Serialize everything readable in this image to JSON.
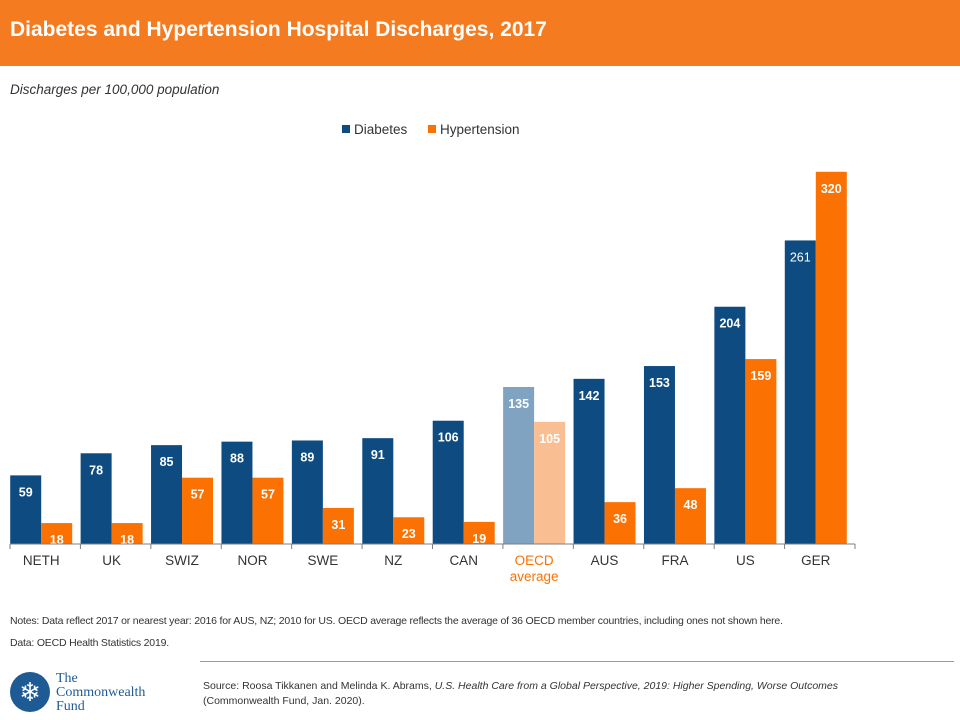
{
  "header": {
    "title": "Diabetes and Hypertension Hospital Discharges, 2017",
    "subtitle": "Discharges per 100,000 population"
  },
  "colors": {
    "header_bg": "#f47b20",
    "diabetes": "#0d4b80",
    "hypertension": "#fb7202",
    "oecd_diabetes": "#7fa3c1",
    "oecd_hypertension": "#f9be91",
    "oecd_label": "#fb7202"
  },
  "chart_data": {
    "type": "bar",
    "categories": [
      "NETH",
      "UK",
      "SWIZ",
      "NOR",
      "SWE",
      "NZ",
      "CAN",
      "OECD average",
      "AUS",
      "FRA",
      "US",
      "GER"
    ],
    "series": [
      {
        "name": "Diabetes",
        "values": [
          59,
          78,
          85,
          88,
          89,
          91,
          106,
          135,
          142,
          153,
          204,
          261
        ]
      },
      {
        "name": "Hypertension",
        "values": [
          18,
          18,
          57,
          57,
          31,
          23,
          19,
          105,
          36,
          48,
          159,
          320
        ]
      }
    ],
    "highlight_category": "OECD average",
    "legend": {
      "position": "top-center"
    },
    "ylim": [
      0,
      325
    ],
    "grid": false,
    "y_axis_visible": false,
    "data_labels": true
  },
  "footer": {
    "notes": "Notes: Data reflect 2017 or nearest year: 2016 for AUS, NZ; 2010 for US. OECD average reflects the average of 36 OECD member countries, including ones not shown here.",
    "data_source": "Data: OECD Health Statistics 2019.",
    "source_prefix": "Source: Roosa Tikkanen and Melinda K. Abrams, ",
    "source_title": "U.S. Health Care from a Global Perspective, 2019: Higher Spending,  Worse Outcomes",
    "source_suffix": "(Commonwealth Fund, Jan. 2020).",
    "logo_line1": "The",
    "logo_line2": "Commonwealth",
    "logo_line3": "Fund",
    "logo_icon": "snowflake-icon"
  }
}
